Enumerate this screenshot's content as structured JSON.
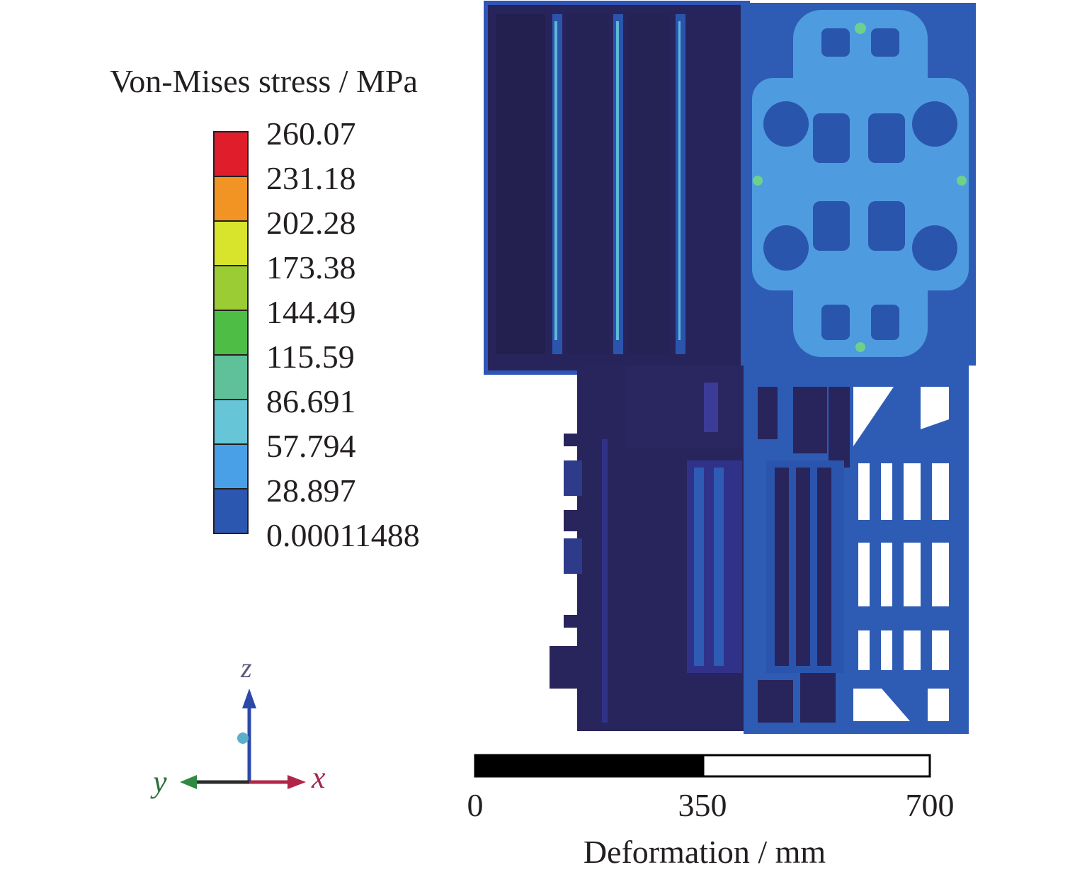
{
  "legend": {
    "title": "Von-Mises stress / MPa",
    "levels": [
      "260.07",
      "231.18",
      "202.28",
      "173.38",
      "144.49",
      "115.59",
      "86.691",
      "57.794",
      "28.897",
      "0.00011488"
    ],
    "band_colors": [
      "#e01e2b",
      "#f29423",
      "#d8e42c",
      "#9ccc33",
      "#4dbd46",
      "#5ec19a",
      "#66c6d8",
      "#4aa0e6",
      "#2b57b0"
    ]
  },
  "axes_triad": {
    "z_label": "z",
    "y_label": "y",
    "x_label": "x"
  },
  "scale_bar": {
    "ticks": [
      "0",
      "350",
      "700"
    ],
    "label": "Deformation / mm"
  },
  "colors": {
    "dark_navy": "#27235a",
    "structure_blue": "#2a55ad",
    "mid_blue": "#2e5cb4",
    "stress_cyan": "#5aa3e6",
    "stress_green": "#6fd08a"
  }
}
